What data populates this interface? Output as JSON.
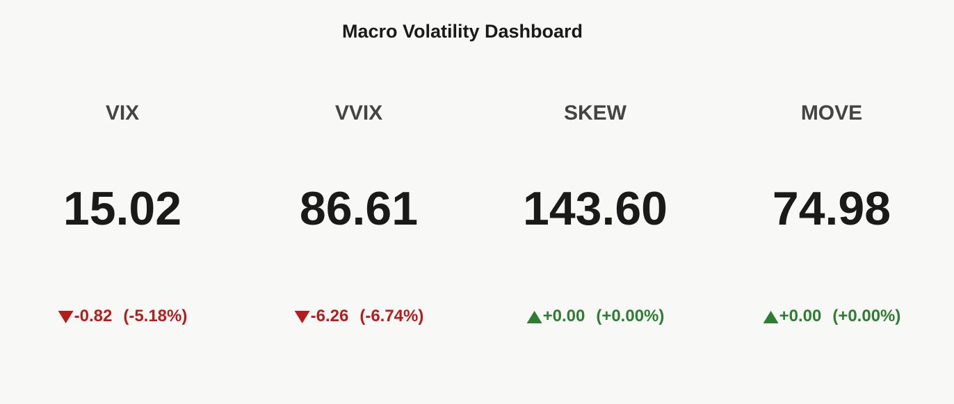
{
  "chart_data": {
    "type": "indicator",
    "title": "Macro Volatility Dashboard",
    "categories": [
      "VIX",
      "VVIX",
      "SKEW",
      "MOVE"
    ],
    "values": [
      15.02,
      86.61,
      143.6,
      74.98
    ],
    "value_labels": [
      "15.02",
      "86.61",
      "143.60",
      "74.98"
    ],
    "deltas": [
      -0.82,
      -6.26,
      0,
      0
    ],
    "delta_labels": [
      "-0.82",
      "-6.26",
      "+0.00",
      "+0.00"
    ],
    "delta_percents": [
      -5.18,
      -6.74,
      0,
      0
    ],
    "delta_percent_labels": [
      "(-5.18%)",
      "(-6.74%)",
      "(+0.00%)",
      "(+0.00%)"
    ],
    "increasing_color": "#2e7d32",
    "decreasing_color": "#b71c1c"
  }
}
